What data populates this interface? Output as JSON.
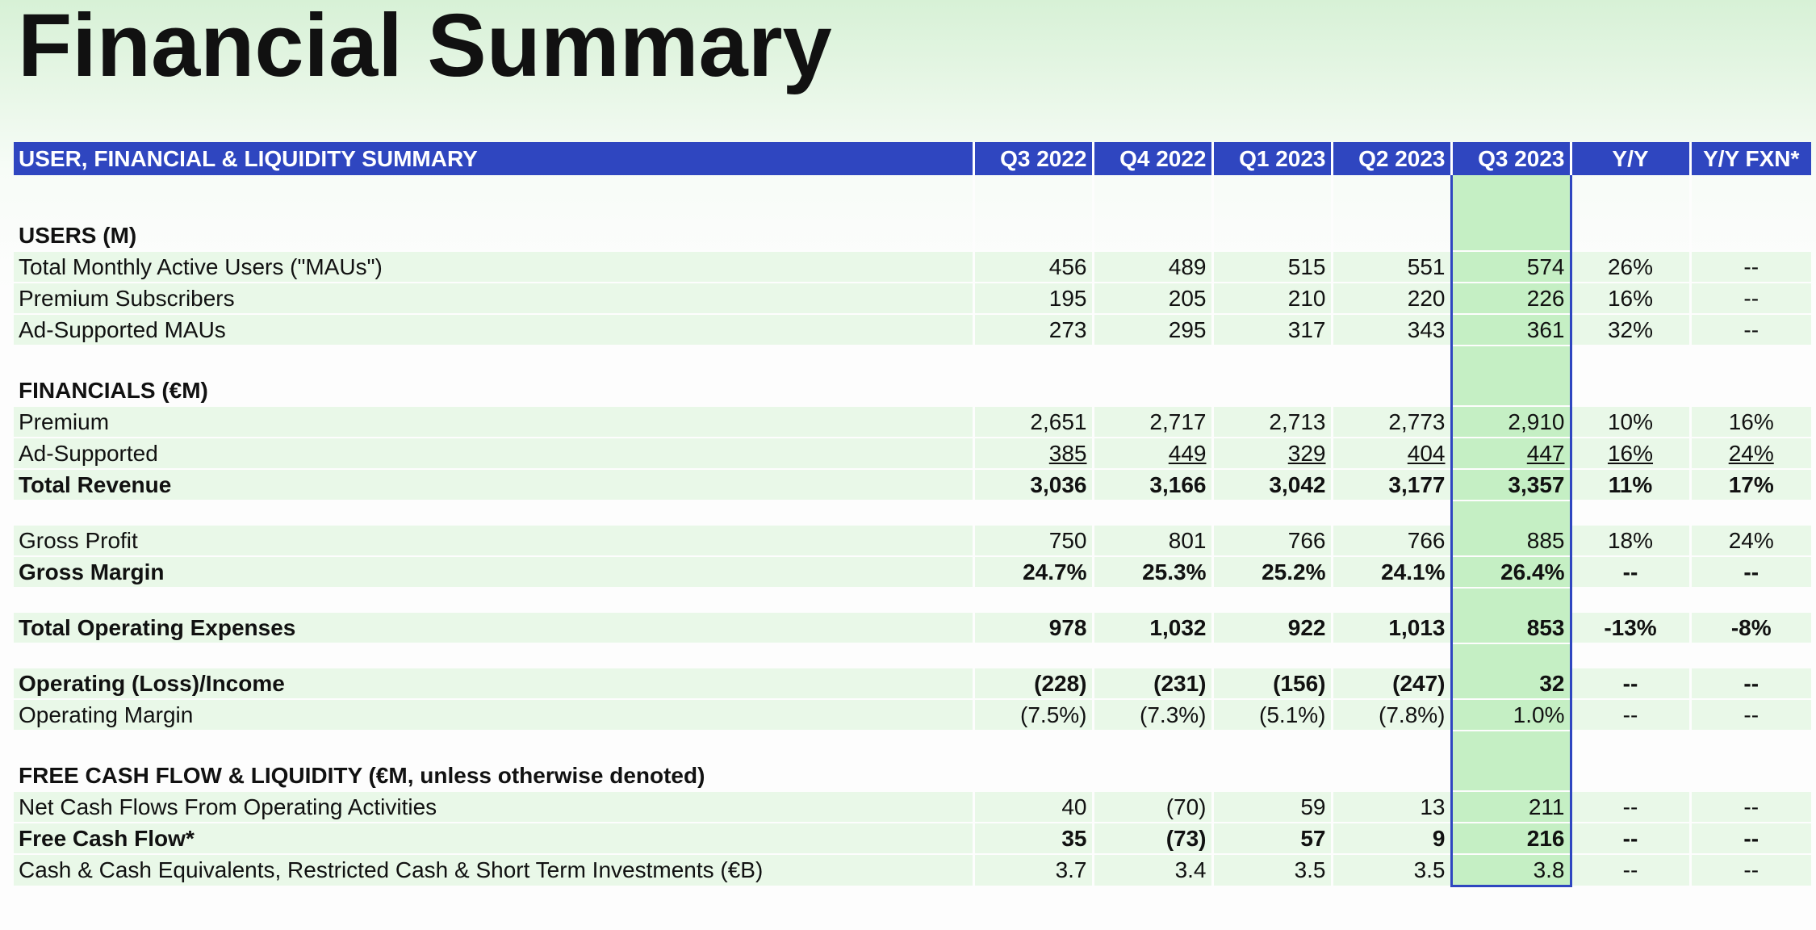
{
  "title": "Financial Summary",
  "accent_color": "#2f46c0",
  "highlight_color": "#c5efc4",
  "row_color": "#e9f8e8",
  "header": [
    "USER, FINANCIAL & LIQUIDITY SUMMARY",
    "Q3 2022",
    "Q4 2022",
    "Q1 2023",
    "Q2 2023",
    "Q3 2023",
    "Y/Y",
    "Y/Y FXN*"
  ],
  "sections": {
    "users": "USERS (M)",
    "financials": "FINANCIALS (€M)",
    "fcf": "FREE CASH FLOW & LIQUIDITY (€M, unless otherwise denoted)"
  },
  "rows": {
    "mau": [
      "Total Monthly Active Users (\"MAUs\")",
      "456",
      "489",
      "515",
      "551",
      "574",
      "26%",
      "--"
    ],
    "premium_subs": [
      "Premium Subscribers",
      "195",
      "205",
      "210",
      "220",
      "226",
      "16%",
      "--"
    ],
    "ad_maus": [
      "Ad-Supported MAUs",
      "273",
      "295",
      "317",
      "343",
      "361",
      "32%",
      "--"
    ],
    "premium_rev": [
      "Premium",
      "2,651",
      "2,717",
      "2,713",
      "2,773",
      "2,910",
      "10%",
      "16%"
    ],
    "ad_rev": [
      "Ad-Supported",
      "385",
      "449",
      "329",
      "404",
      "447",
      "16%",
      "24%"
    ],
    "total_rev": [
      "Total Revenue",
      "3,036",
      "3,166",
      "3,042",
      "3,177",
      "3,357",
      "11%",
      "17%"
    ],
    "gross_profit": [
      "Gross Profit",
      "750",
      "801",
      "766",
      "766",
      "885",
      "18%",
      "24%"
    ],
    "gross_margin": [
      "Gross Margin",
      "24.7%",
      "25.3%",
      "25.2%",
      "24.1%",
      "26.4%",
      "--",
      "--"
    ],
    "opex": [
      "Total Operating Expenses",
      "978",
      "1,032",
      "922",
      "1,013",
      "853",
      "-13%",
      "-8%"
    ],
    "op_income": [
      "Operating (Loss)/Income",
      "(228)",
      "(231)",
      "(156)",
      "(247)",
      "32",
      "--",
      "--"
    ],
    "op_margin": [
      "Operating Margin",
      "(7.5%)",
      "(7.3%)",
      "(5.1%)",
      "(7.8%)",
      "1.0%",
      "--",
      "--"
    ],
    "ocf": [
      "Net Cash Flows From Operating Activities",
      "40",
      "(70)",
      "59",
      "13",
      "211",
      "--",
      "--"
    ],
    "fcf": [
      "Free Cash Flow*",
      "35",
      "(73)",
      "57",
      "9",
      "216",
      "--",
      "--"
    ],
    "cash": [
      "Cash & Cash Equivalents, Restricted Cash & Short Term Investments (€B)",
      "3.7",
      "3.4",
      "3.5",
      "3.5",
      "3.8",
      "--",
      "--"
    ]
  }
}
